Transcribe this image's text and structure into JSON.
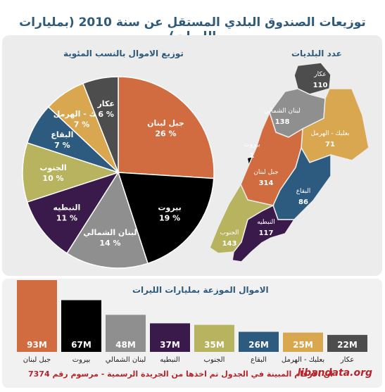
{
  "header": {
    "title": "توزيعات الصندوق البلدي المستقل عن سنة 2010 (بمليارات الليرات)"
  },
  "pie": {
    "subtitle": "توزيع الاموال بالنسب المئوية"
  },
  "map": {
    "subtitle": "عدد البلديات",
    "regions": [
      {
        "name": "عكار",
        "count": "110",
        "color": "#4d4d4d"
      },
      {
        "name": "لبنان الشمالي",
        "count": "138",
        "color": "#8f8f8f"
      },
      {
        "name": "بعلبك - الهرمل",
        "count": "71",
        "color": "#d9a74f"
      },
      {
        "name": "بيروت",
        "count": "1",
        "color": "#000000"
      },
      {
        "name": "جبل لبنان",
        "count": "314",
        "color": "#d06c3f"
      },
      {
        "name": "البقاع",
        "count": "86",
        "color": "#2d5b80"
      },
      {
        "name": "النبطيه",
        "count": "117",
        "color": "#3a1a4a"
      },
      {
        "name": "الجنوب",
        "count": "143",
        "color": "#b7b35f"
      }
    ]
  },
  "bar": {
    "subtitle": "الاموال الموزعة بمليارات الليرات"
  },
  "footer": {
    "note": "7374 ان الارقام المبينة في الجدول تم اخذها من الجريدة الرسمية - مرسوم رقم",
    "brand": "libandata.org"
  },
  "chart_data": [
    {
      "type": "pie",
      "title": "توزيع الاموال بالنسب المئوية",
      "categories": [
        "جبل لبنان",
        "بيروت",
        "لبنان الشمالي",
        "النبطيه",
        "الجنوب",
        "البقاع",
        "بعلبك - الهرمل",
        "عكار"
      ],
      "values": [
        26,
        19,
        14,
        11,
        10,
        7,
        7,
        6
      ],
      "labels": [
        "26 %",
        "19 %",
        "14 %",
        "11 %",
        "10 %",
        "7 %",
        "7 %",
        "6 %"
      ],
      "colors": [
        "#d06c3f",
        "#000000",
        "#8f8f8f",
        "#3a1a4a",
        "#b7b35f",
        "#2d5b80",
        "#d9a74f",
        "#4d4d4d"
      ]
    },
    {
      "type": "bar",
      "title": "الاموال الموزعة بمليارات الليرات",
      "categories": [
        "جبل لبنان",
        "بيروت",
        "لبنان الشمالي",
        "النبطيه",
        "الجنوب",
        "البقاع",
        "بعلبك - الهرمل",
        "عكار"
      ],
      "values": [
        93,
        67,
        48,
        37,
        35,
        26,
        25,
        22
      ],
      "labels": [
        "93M",
        "67M",
        "48M",
        "37M",
        "35M",
        "26M",
        "25M",
        "22M"
      ],
      "colors": [
        "#d06c3f",
        "#000000",
        "#8f8f8f",
        "#3a1a4a",
        "#b7b35f",
        "#2d5b80",
        "#d9a74f",
        "#4d4d4d"
      ]
    }
  ]
}
